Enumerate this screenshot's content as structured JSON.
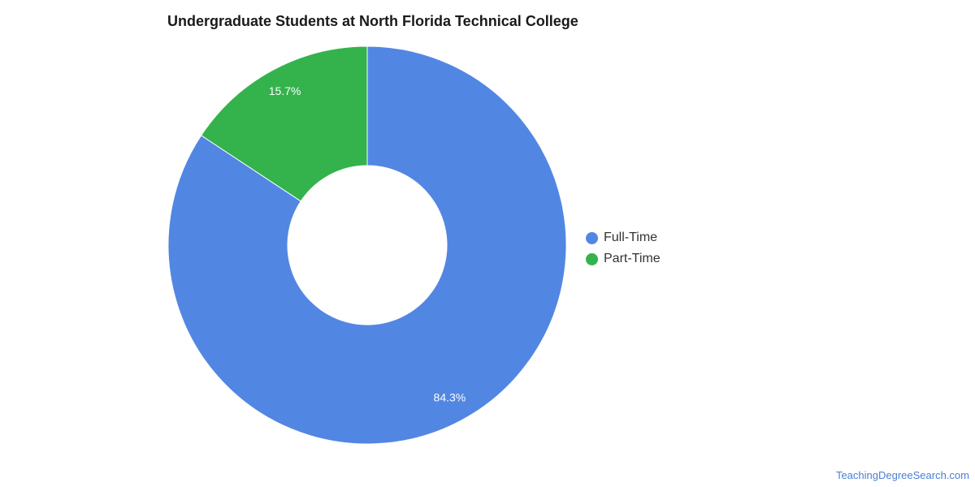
{
  "chart_data": {
    "type": "pie",
    "variant": "donut",
    "title": "Undergraduate Students at North Florida Technical College",
    "categories": [
      "Full-Time",
      "Part-Time"
    ],
    "values": [
      84.3,
      15.7
    ],
    "value_labels": [
      "84.3%",
      "15.7%"
    ],
    "colors": [
      "#5286e3",
      "#34b24c"
    ],
    "legend_position": "right"
  },
  "credit": "TeachingDegreeSearch.com"
}
